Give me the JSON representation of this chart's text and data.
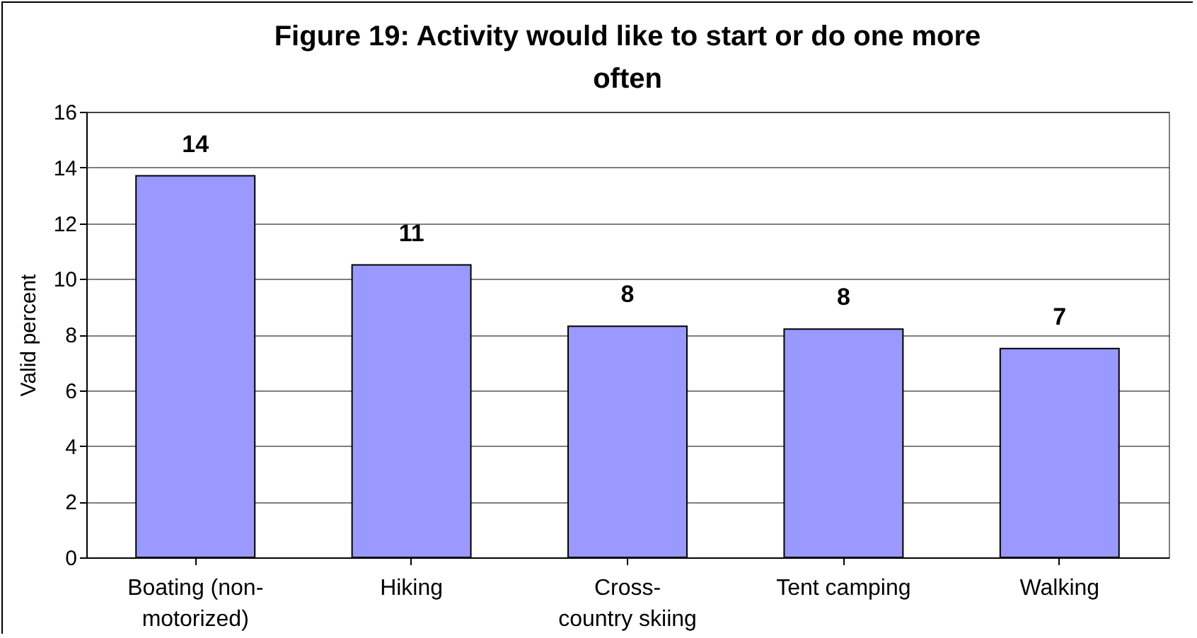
{
  "chart_data": {
    "type": "bar",
    "title": "Figure 19: Activity would like to start or do one more often",
    "ylabel": "Valid percent",
    "categories": [
      "Boating (non-motorized)",
      "Hiking",
      "Cross-country skiing",
      "Tent camping",
      "Walking"
    ],
    "values": [
      13.7,
      10.5,
      8.3,
      8.2,
      7.5
    ],
    "value_labels": [
      "14",
      "11",
      "8",
      "8",
      "7"
    ],
    "color": "#9999ff",
    "ylim": [
      0,
      16
    ],
    "yticks": [
      0,
      2,
      4,
      6,
      8,
      10,
      12,
      14,
      16
    ],
    "grid": "y"
  }
}
